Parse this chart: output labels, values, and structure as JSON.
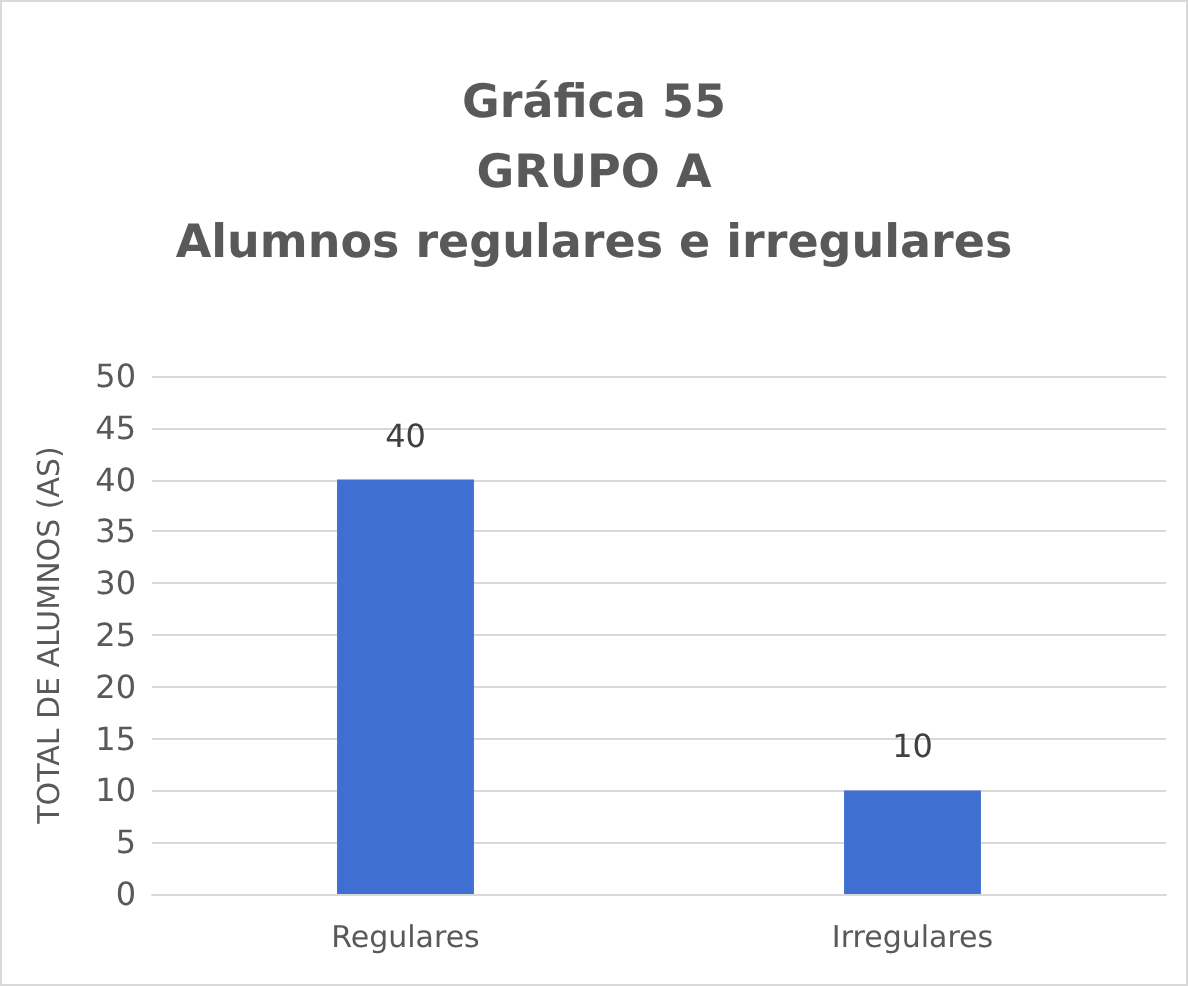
{
  "chart_data": {
    "type": "bar",
    "title": "Gráfica 55\nGRUPO A\nAlumnos regulares e irregulares",
    "ylabel": "TOTAL DE ALUMNOS (AS)",
    "categories": [
      "Regulares",
      "Irregulares"
    ],
    "values": [
      40,
      10
    ],
    "color": "#3f6fd0",
    "ylim": [
      0,
      50
    ],
    "yticks": [
      0,
      5,
      10,
      15,
      20,
      25,
      30,
      35,
      40,
      45,
      50
    ],
    "grid": "y",
    "data_labels": true
  }
}
